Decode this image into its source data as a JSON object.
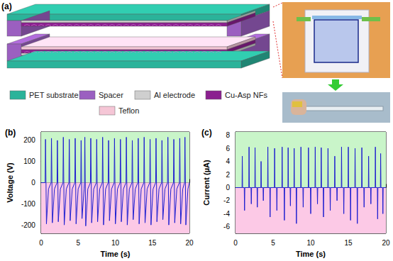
{
  "diagram": {
    "title": "(a)",
    "legend": [
      {
        "label": "PET substrate",
        "color": "#2bb39a"
      },
      {
        "label": "Spacer",
        "color": "#9b5fc0"
      },
      {
        "label": "Al electrode",
        "color": "#cfcfcf"
      },
      {
        "label": "Cu-Asp NFs",
        "color": "#8b1f8f"
      },
      {
        "label": "Teflon",
        "color": "#f5c6d6"
      }
    ]
  },
  "chart_data": [
    {
      "type": "line",
      "title": "(b)",
      "x_label": "Time (s)",
      "y_label": "Voltage (V)",
      "color": "#1f1fd0",
      "grid": false,
      "xlim": [
        0,
        20
      ],
      "xticks": [
        0,
        5,
        10,
        15,
        20
      ],
      "ylim": [
        -240,
        240
      ],
      "yticks": [
        -200,
        -100,
        0,
        100,
        200
      ],
      "x": [
        0,
        0.55,
        0.6,
        0.72,
        1.0,
        1.35,
        1.4,
        1.52,
        1.8,
        2.15,
        2.2,
        2.32,
        2.6,
        2.95,
        3.0,
        3.12,
        3.4,
        3.75,
        3.8,
        3.92,
        4.2,
        4.55,
        4.6,
        4.72,
        5.0,
        5.35,
        5.4,
        5.52,
        5.8,
        5.85,
        5.9,
        6.02,
        6.3,
        6.65,
        6.7,
        6.82,
        7.1,
        7.45,
        7.5,
        7.62,
        7.9,
        8.25,
        8.3,
        8.42,
        8.7,
        9.05,
        9.1,
        9.22,
        9.5,
        9.85,
        9.9,
        10.02,
        10.3,
        10.65,
        10.7,
        10.82,
        11.1,
        11.45,
        11.5,
        11.62,
        11.9,
        12.25,
        12.3,
        12.42,
        12.7,
        13.05,
        13.1,
        13.22,
        13.5,
        13.85,
        13.9,
        14.02,
        14.3,
        14.65,
        14.7,
        14.82,
        15.1,
        15.45,
        15.5,
        15.62,
        15.9,
        16.25,
        16.3,
        16.42,
        16.7,
        17.05,
        17.1,
        17.22,
        17.5,
        17.85,
        17.9,
        18.02,
        18.3,
        18.65,
        18.7,
        18.82,
        19.1,
        19.35,
        19.4,
        19.52,
        19.8,
        20
      ],
      "values": [
        0,
        0,
        205,
        -195,
        -30,
        0,
        210,
        -190,
        -30,
        0,
        200,
        -185,
        -30,
        0,
        215,
        -200,
        -30,
        0,
        205,
        -180,
        -30,
        0,
        210,
        -195,
        -30,
        0,
        200,
        -170,
        -30,
        0,
        215,
        -205,
        -30,
        0,
        210,
        -190,
        -30,
        0,
        205,
        -185,
        -30,
        0,
        215,
        -200,
        -30,
        0,
        200,
        -180,
        -30,
        0,
        210,
        -195,
        -30,
        0,
        205,
        -185,
        -30,
        0,
        215,
        -200,
        -30,
        0,
        200,
        -175,
        -30,
        0,
        210,
        -195,
        -30,
        0,
        215,
        -190,
        -30,
        0,
        205,
        -200,
        -30,
        0,
        210,
        -185,
        -30,
        0,
        200,
        -175,
        -30,
        0,
        215,
        -200,
        -30,
        0,
        205,
        -190,
        -30,
        0,
        210,
        -195,
        -30,
        0,
        215,
        -200,
        -30,
        0
      ]
    },
    {
      "type": "line",
      "title": "(c)",
      "x_label": "Time (s)",
      "y_label": "Current (µA)",
      "color": "#1f1fd0",
      "grid": false,
      "xlim": [
        0,
        20
      ],
      "xticks": [
        0,
        5,
        10,
        15,
        20
      ],
      "ylim": [
        -7,
        8.5
      ],
      "yticks": [
        -6,
        -4,
        -2,
        0,
        2,
        4,
        6,
        8
      ],
      "x": [
        0,
        0.87,
        0.9,
        0.94,
        1.16,
        1.2,
        1.24,
        1.77,
        1.8,
        1.84,
        2.06,
        2.1,
        2.14,
        2.57,
        2.6,
        2.64,
        2.86,
        2.9,
        2.94,
        3.37,
        3.4,
        3.44,
        3.66,
        3.7,
        3.74,
        4.27,
        4.3,
        4.34,
        4.56,
        4.6,
        4.64,
        5.17,
        5.2,
        5.24,
        5.46,
        5.5,
        5.54,
        6.17,
        6.2,
        6.24,
        6.46,
        6.5,
        6.54,
        6.97,
        7,
        7.04,
        7.26,
        7.3,
        7.34,
        7.77,
        7.8,
        7.84,
        8.06,
        8.1,
        8.14,
        8.67,
        8.7,
        8.74,
        8.96,
        9,
        9.04,
        9.67,
        9.7,
        9.74,
        9.96,
        10,
        10.04,
        10.57,
        10.6,
        10.64,
        10.86,
        10.9,
        10.94,
        11.37,
        11.4,
        11.44,
        11.66,
        11.7,
        11.74,
        12.27,
        12.3,
        12.34,
        12.56,
        12.6,
        12.64,
        13.17,
        13.2,
        13.24,
        13.46,
        13.5,
        13.54,
        14.07,
        14.1,
        14.14,
        14.36,
        14.4,
        14.44,
        14.97,
        15,
        15.04,
        15.26,
        15.3,
        15.34,
        15.87,
        15.9,
        15.94,
        16.16,
        16.2,
        16.24,
        16.77,
        16.8,
        16.84,
        17.06,
        17.1,
        17.14,
        17.67,
        17.7,
        17.74,
        17.96,
        18,
        18.04,
        18.57,
        18.6,
        18.64,
        18.86,
        18.9,
        18.94,
        19.27,
        19.3,
        19.34,
        19.56,
        19.6,
        19.64,
        20
      ],
      "values": [
        0,
        0,
        4.8,
        0,
        0,
        -3.5,
        0,
        0,
        6.2,
        0,
        0,
        -2.5,
        0,
        0,
        6.1,
        0,
        0,
        -3,
        0,
        0,
        4,
        0,
        0,
        -2,
        0,
        0,
        6.2,
        0,
        0,
        -4.5,
        0,
        0,
        6,
        0,
        0,
        -3.5,
        0,
        0,
        6.2,
        0,
        0,
        -5,
        0,
        0,
        6.1,
        0,
        0,
        -2.8,
        0,
        0,
        6,
        0,
        0,
        -5.5,
        0,
        0,
        6.2,
        0,
        0,
        -3,
        0,
        0,
        6.1,
        0,
        0,
        -4,
        0,
        0,
        6.2,
        0,
        0,
        -2.5,
        0,
        0,
        6.1,
        0,
        0,
        -4.5,
        0,
        0,
        6,
        0,
        0,
        -3.5,
        0,
        0,
        4.8,
        0,
        0,
        -2,
        0,
        0,
        6.2,
        0,
        0,
        -4,
        0,
        0,
        6.2,
        0,
        0,
        -5,
        0,
        0,
        6,
        0,
        0,
        -5.5,
        0,
        0,
        6.1,
        0,
        0,
        -3,
        0,
        0,
        4.8,
        0,
        0,
        -2.5,
        0,
        0,
        6.2,
        0,
        0,
        -4.8,
        0,
        0,
        5.2,
        0,
        0,
        -4,
        0,
        0
      ]
    }
  ]
}
